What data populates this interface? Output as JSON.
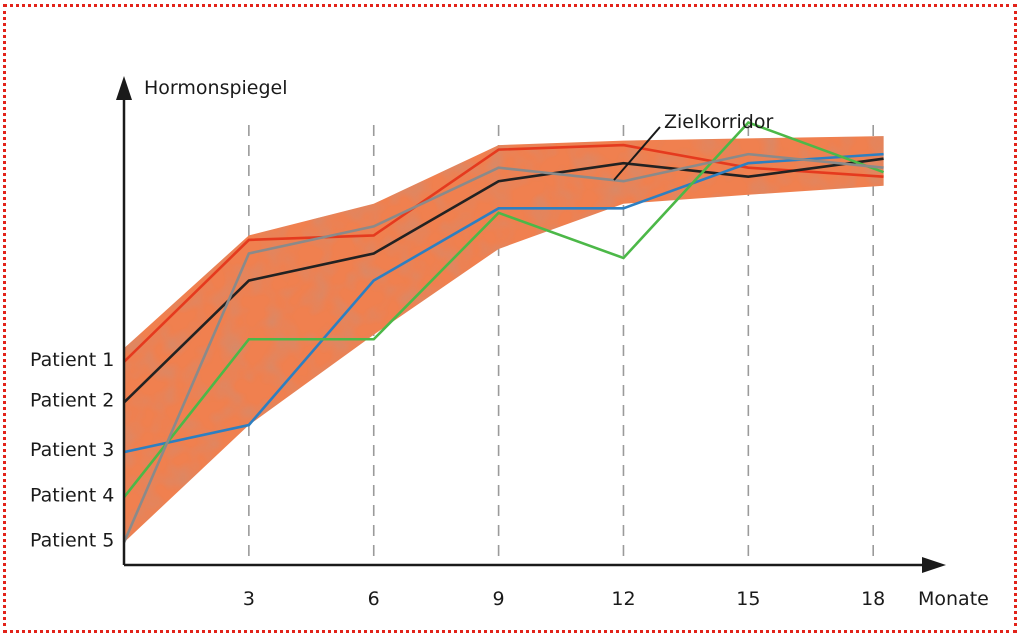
{
  "chart_data": {
    "type": "line",
    "y_axis_title": "Hormonspiegel",
    "x_axis_title": "Monate",
    "x_ticks": [
      3,
      6,
      9,
      12,
      15,
      18
    ],
    "xlim": [
      0,
      18.8
    ],
    "ylim": [
      0,
      100
    ],
    "grid": "vertical-dashed",
    "corridor": {
      "label": "Zielkorridor",
      "color": "#f08050",
      "x": [
        0,
        3,
        6,
        9,
        12,
        15,
        18.25
      ],
      "lower": [
        5,
        31,
        51,
        70,
        80,
        82,
        84
      ],
      "upper": [
        48,
        73,
        80,
        93,
        94,
        94.5,
        95
      ]
    },
    "x": [
      0,
      3,
      6,
      9,
      12,
      15,
      18.25
    ],
    "series": [
      {
        "name": "Patient 1",
        "color": "#e53a1e",
        "values": [
          45,
          72,
          73,
          92,
          93,
          88,
          86
        ]
      },
      {
        "name": "Patient 2",
        "color": "#222222",
        "values": [
          36,
          63,
          69,
          85,
          89,
          86,
          90
        ]
      },
      {
        "name": "Patient 3",
        "color": "#2d7fc1",
        "values": [
          25,
          31,
          63,
          79,
          79,
          89,
          91
        ]
      },
      {
        "name": "Patient 4",
        "color": "#4cb848",
        "values": [
          15,
          50,
          50,
          78,
          68,
          98,
          87
        ]
      },
      {
        "name": "Patient 5",
        "color": "#8a8a8a",
        "values": [
          5,
          69,
          75,
          88,
          85,
          91,
          88
        ]
      }
    ]
  }
}
